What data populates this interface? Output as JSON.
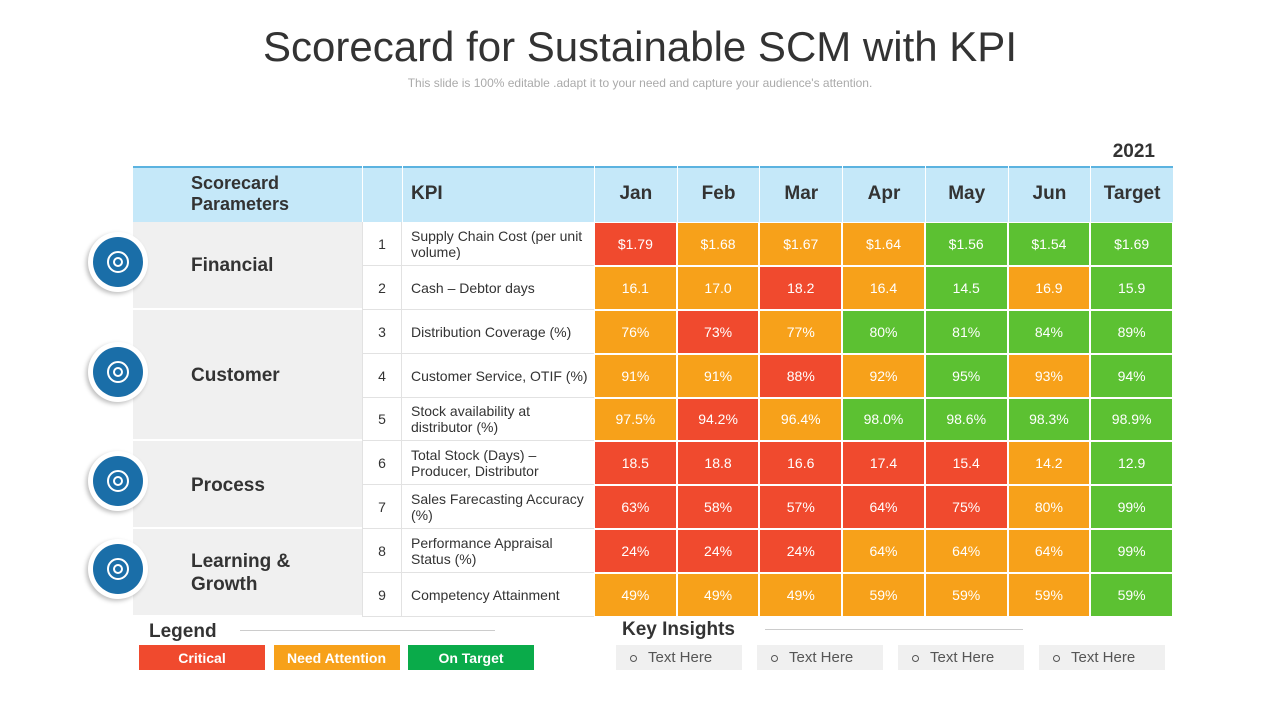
{
  "title": "Scorecard for Sustainable SCM with KPI",
  "subtitle": "This slide is 100% editable .adapt it to your need and capture your audience's attention.",
  "year": "2021",
  "table": {
    "header": {
      "parameters": "Scorecard Parameters",
      "kpi": "KPI",
      "columns": [
        "Jan",
        "Feb",
        "Mar",
        "Apr",
        "May",
        "Jun",
        "Target"
      ]
    },
    "groups": [
      {
        "name": "Financial",
        "rows": [
          {
            "num": "1",
            "kpi": "Supply Chain Cost (per unit volume)",
            "cells": [
              "$1.79",
              "$1.68",
              "$1.67",
              "$1.64",
              "$1.56",
              "$1.54",
              "$1.69"
            ],
            "colors": [
              "#f04a2e",
              "#f7a11a",
              "#f7a11a",
              "#f7a11a",
              "#5cc132",
              "#5cc132",
              "#5cc132"
            ]
          },
          {
            "num": "2",
            "kpi": "Cash – Debtor days",
            "cells": [
              "16.1",
              "17.0",
              "18.2",
              "16.4",
              "14.5",
              "16.9",
              "15.9"
            ],
            "colors": [
              "#f7a11a",
              "#f7a11a",
              "#f04a2e",
              "#f7a11a",
              "#5cc132",
              "#f7a11a",
              "#5cc132"
            ]
          }
        ]
      },
      {
        "name": "Customer",
        "rows": [
          {
            "num": "3",
            "kpi": "Distribution Coverage (%)",
            "cells": [
              "76%",
              "73%",
              "77%",
              "80%",
              "81%",
              "84%",
              "89%"
            ],
            "colors": [
              "#f7a11a",
              "#f04a2e",
              "#f7a11a",
              "#5cc132",
              "#5cc132",
              "#5cc132",
              "#5cc132"
            ]
          },
          {
            "num": "4",
            "kpi": "Customer Service, OTIF (%)",
            "cells": [
              "91%",
              "91%",
              "88%",
              "92%",
              "95%",
              "93%",
              "94%"
            ],
            "colors": [
              "#f7a11a",
              "#f7a11a",
              "#f04a2e",
              "#f7a11a",
              "#5cc132",
              "#f7a11a",
              "#5cc132"
            ]
          },
          {
            "num": "5",
            "kpi": "Stock availability at distributor (%)",
            "cells": [
              "97.5%",
              "94.2%",
              "96.4%",
              "98.0%",
              "98.6%",
              "98.3%",
              "98.9%"
            ],
            "colors": [
              "#f7a11a",
              "#f04a2e",
              "#f7a11a",
              "#5cc132",
              "#5cc132",
              "#5cc132",
              "#5cc132"
            ]
          }
        ]
      },
      {
        "name": "Process",
        "rows": [
          {
            "num": "6",
            "kpi": "Total Stock (Days) – Producer, Distributor",
            "cells": [
              "18.5",
              "18.8",
              "16.6",
              "17.4",
              "15.4",
              "14.2",
              "12.9"
            ],
            "colors": [
              "#f04a2e",
              "#f04a2e",
              "#f04a2e",
              "#f04a2e",
              "#f04a2e",
              "#f7a11a",
              "#5cc132"
            ]
          },
          {
            "num": "7",
            "kpi": "Sales Farecasting Accuracy (%)",
            "cells": [
              "63%",
              "58%",
              "57%",
              "64%",
              "75%",
              "80%",
              "99%"
            ],
            "colors": [
              "#f04a2e",
              "#f04a2e",
              "#f04a2e",
              "#f04a2e",
              "#f04a2e",
              "#f7a11a",
              "#5cc132"
            ]
          }
        ]
      },
      {
        "name": "Learning & Growth",
        "rows": [
          {
            "num": "8",
            "kpi": "Performance Appraisal Status (%)",
            "cells": [
              "24%",
              "24%",
              "24%",
              "64%",
              "64%",
              "64%",
              "99%"
            ],
            "colors": [
              "#f04a2e",
              "#f04a2e",
              "#f04a2e",
              "#f7a11a",
              "#f7a11a",
              "#f7a11a",
              "#5cc132"
            ]
          },
          {
            "num": "9",
            "kpi": "Competency Attainment",
            "cells": [
              "49%",
              "49%",
              "49%",
              "59%",
              "59%",
              "59%",
              "59%"
            ],
            "colors": [
              "#f7a11a",
              "#f7a11a",
              "#f7a11a",
              "#f7a11a",
              "#f7a11a",
              "#f7a11a",
              "#5cc132"
            ]
          }
        ]
      }
    ]
  },
  "legend": {
    "title": "Legend",
    "items": [
      {
        "label": "Critical",
        "color": "#f04a2e"
      },
      {
        "label": "Need Attention",
        "color": "#f7a11a"
      },
      {
        "label": "On Target",
        "color": "#0aab4a"
      }
    ]
  },
  "insights": {
    "title": "Key Insights",
    "items": [
      "Text Here",
      "Text Here",
      "Text Here",
      "Text Here"
    ]
  }
}
